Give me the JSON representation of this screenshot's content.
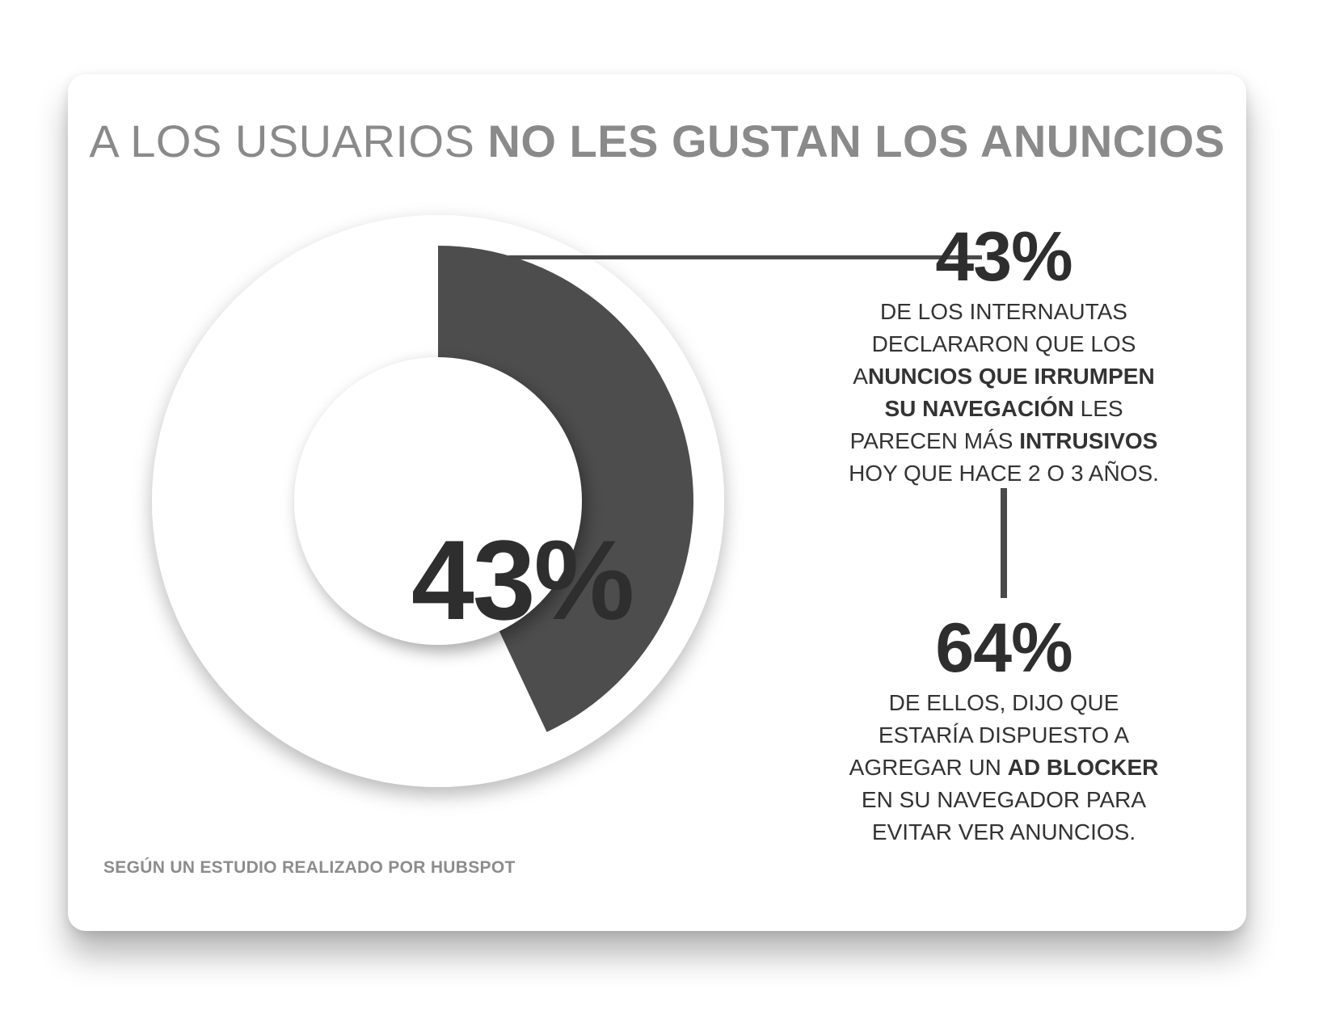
{
  "title": {
    "light": "A LOS USUARIOS ",
    "bold": "NO LES GUSTAN LOS ANUNCIOS"
  },
  "chart_data": {
    "type": "pie",
    "slices": [
      {
        "label": "43%",
        "value": 43
      }
    ],
    "center_label": "43%",
    "colors": {
      "slice": "#4d4d4d",
      "base": "#ffffff"
    }
  },
  "stat1": {
    "number": "43%",
    "lines": [
      [
        {
          "t": "DE LOS INTERNAUTAS",
          "b": false
        }
      ],
      [
        {
          "t": "DECLARARON QUE LOS",
          "b": false
        }
      ],
      [
        {
          "t": "A",
          "b": false
        },
        {
          "t": "NUNCIOS QUE IRRUMPEN",
          "b": true
        }
      ],
      [
        {
          "t": "SU NAVEGACIÓN",
          "b": true
        },
        {
          "t": " LES",
          "b": false
        }
      ],
      [
        {
          "t": "PARECEN MÁS ",
          "b": false
        },
        {
          "t": "INTRUSIVOS",
          "b": true
        }
      ],
      [
        {
          "t": "HOY QUE HACE 2 O 3 AÑOS.",
          "b": false
        }
      ]
    ]
  },
  "stat2": {
    "number": "64%",
    "lines": [
      [
        {
          "t": "DE ELLOS,  DIJO QUE",
          "b": false
        }
      ],
      [
        {
          "t": "ESTARÍA DISPUESTO A",
          "b": false
        }
      ],
      [
        {
          "t": "AGREGAR UN ",
          "b": false
        },
        {
          "t": "AD BLOCKER",
          "b": true
        }
      ],
      [
        {
          "t": "EN SU NAVEGADOR PARA",
          "b": false
        }
      ],
      [
        {
          "t": "EVITAR VER ANUNCIOS.",
          "b": false
        }
      ]
    ]
  },
  "source": "SEGÚN UN ESTUDIO REALIZADO POR HUBSPOT"
}
